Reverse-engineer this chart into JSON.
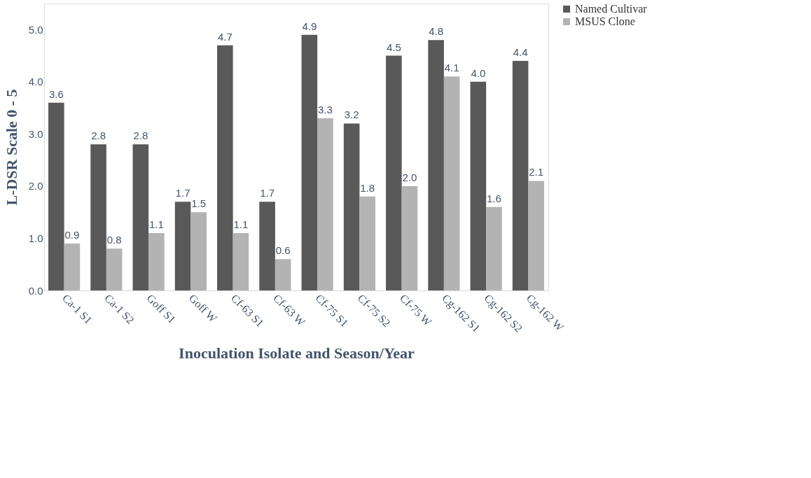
{
  "chart_data": {
    "type": "bar",
    "xlabel": "Inoculation Isolate and Season/Year",
    "ylabel": "L-DSR Scale 0 - 5",
    "categories": [
      "Ca-1  S1",
      "Ca-1  S2",
      "Goff S1",
      "Goff  W",
      "Cf-63  S1",
      "Cf-63  W",
      "Cf-75  S1",
      "Cf-75  S2",
      "Cf-75  W",
      "Cg-162  S1",
      "Cg-162  S2",
      "Cg-162  W"
    ],
    "series": [
      {
        "name": "Named Cultivar",
        "color": "#595959",
        "values": [
          3.6,
          2.8,
          2.8,
          1.7,
          4.7,
          1.7,
          4.9,
          3.2,
          4.5,
          4.8,
          4.0,
          4.4
        ],
        "value_labels": [
          "3.6",
          "2.8",
          "2.8",
          "1.7",
          "4.7",
          "1.7",
          "4.9",
          "3.2",
          "4.5",
          "4.8",
          "4.0",
          "4.4"
        ]
      },
      {
        "name": "MSUS Clone",
        "color": "#b3b3b3",
        "values": [
          0.9,
          0.8,
          1.1,
          1.5,
          1.1,
          0.6,
          3.3,
          1.8,
          2.0,
          4.1,
          1.6,
          2.1
        ],
        "value_labels": [
          "0.9",
          "0.8",
          "1.1",
          "1.5",
          "1.1",
          "0.6",
          "3.3",
          "1.8",
          "2.0",
          "4.1",
          "1.6",
          "2.1"
        ]
      }
    ],
    "ylim": [
      0,
      5.5
    ],
    "yticks": [
      {
        "value": 0,
        "label": "0.0"
      },
      {
        "value": 1,
        "label": "1.0"
      },
      {
        "value": 2,
        "label": "2.0"
      },
      {
        "value": 3,
        "label": "3.0"
      },
      {
        "value": 4,
        "label": "4.0"
      },
      {
        "value": 5,
        "label": "5.0"
      }
    ],
    "legend": "right",
    "grid": false
  }
}
